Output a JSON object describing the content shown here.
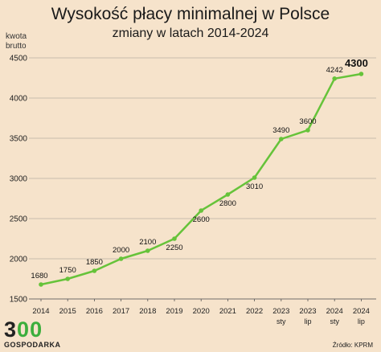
{
  "title": "Wysokość płacy minimalnej w Polsce",
  "subtitle": "zmiany w latach 2014-2024",
  "source": "Źródło: KPRM",
  "logo": {
    "digits": [
      "3",
      "0",
      "0"
    ],
    "text": "GOSPODARKA"
  },
  "colors": {
    "background": "#f6e3cb",
    "line": "#66c33a",
    "grid": "#b8b0a4",
    "logo_accent": "#3cae3c"
  },
  "chart_data": {
    "type": "line",
    "title": "Wysokość płacy minimalnej w Polsce",
    "subtitle": "zmiany w latach 2014-2024",
    "ylabel": "kwota\nbrutto",
    "xlabel": "",
    "ylim": [
      1500,
      4500
    ],
    "yticks": [
      1500,
      2000,
      2500,
      3000,
      3500,
      4000,
      4500
    ],
    "grid": true,
    "categories": [
      {
        "year": "2014",
        "sub": ""
      },
      {
        "year": "2015",
        "sub": ""
      },
      {
        "year": "2016",
        "sub": ""
      },
      {
        "year": "2017",
        "sub": ""
      },
      {
        "year": "2018",
        "sub": ""
      },
      {
        "year": "2019",
        "sub": ""
      },
      {
        "year": "2020",
        "sub": ""
      },
      {
        "year": "2021",
        "sub": ""
      },
      {
        "year": "2022",
        "sub": ""
      },
      {
        "year": "2023",
        "sub": "sty"
      },
      {
        "year": "2023",
        "sub": "lip"
      },
      {
        "year": "2024",
        "sub": "sty"
      },
      {
        "year": "2024",
        "sub": "lip"
      }
    ],
    "values": [
      1680,
      1750,
      1850,
      2000,
      2100,
      2250,
      2600,
      2800,
      3010,
      3490,
      3600,
      4242,
      4300
    ],
    "labels": [
      "1680",
      "1750",
      "1850",
      "2000",
      "2100",
      "2250",
      "2600",
      "2800",
      "3010",
      "3490",
      "3600",
      "4242",
      "4300"
    ],
    "highlight_last": true
  }
}
